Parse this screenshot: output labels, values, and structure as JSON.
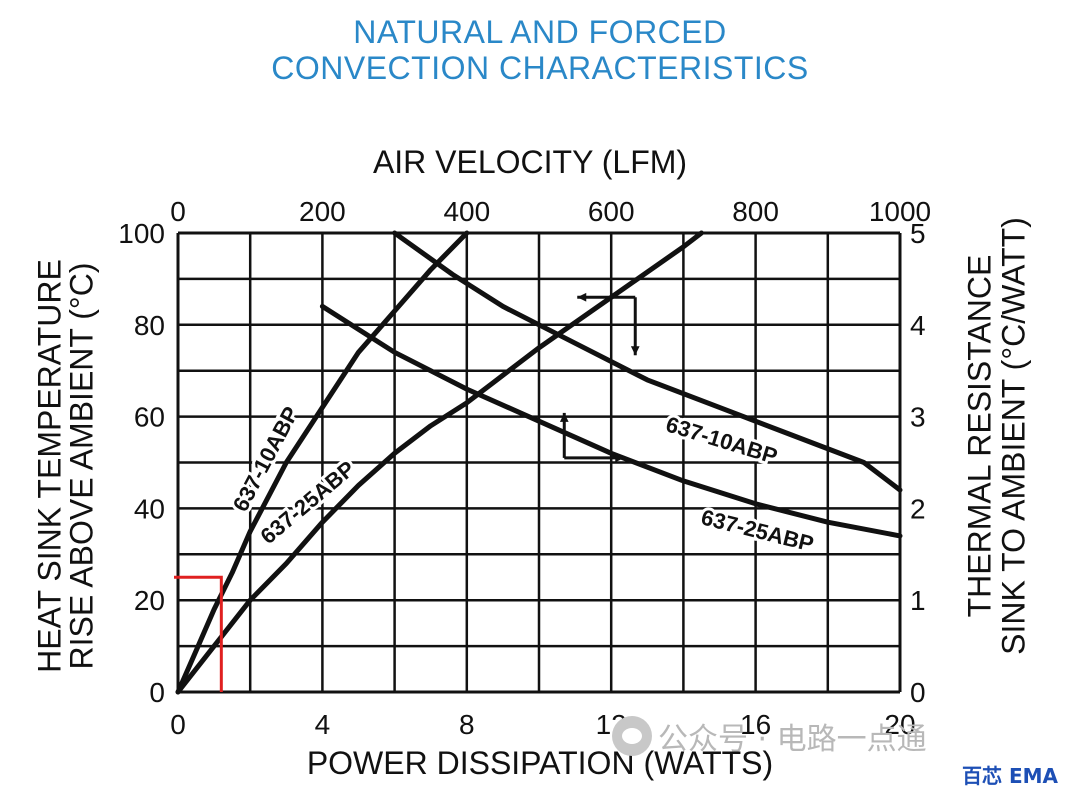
{
  "title_lines": [
    "NATURAL AND FORCED",
    "CONVECTION CHARACTERISTICS"
  ],
  "watermark_text": "公众号 · 电路一点通",
  "brand_text": "百芯 EMA",
  "chart_data": {
    "type": "line",
    "x_top": {
      "label": "AIR VELOCITY (LFM)",
      "range": [
        0,
        1000
      ],
      "ticks": [
        "0",
        "200",
        "400",
        "600",
        "800",
        "1000"
      ]
    },
    "x_bottom": {
      "label": "POWER DISSIPATION (WATTS)",
      "range": [
        0,
        20
      ],
      "ticks": [
        "0",
        "4",
        "8",
        "12",
        "16",
        "20"
      ]
    },
    "y_left": {
      "label_lines": [
        "HEAT SINK TEMPERATURE",
        "RISE ABOVE AMBIENT (°C)"
      ],
      "range": [
        0,
        100
      ],
      "ticks": [
        "0",
        "20",
        "40",
        "60",
        "80",
        "100"
      ]
    },
    "y_right": {
      "label_lines": [
        "THERMAL RESISTANCE",
        "SINK TO AMBIENT (°C/WATT)"
      ],
      "range": [
        0,
        5
      ],
      "ticks": [
        "0",
        "1",
        "2",
        "3",
        "4",
        "5"
      ]
    },
    "grid": true,
    "series": [
      {
        "name": "637-10ABP",
        "axes": "power-temperature",
        "points": [
          [
            0,
            0
          ],
          [
            0.5,
            9
          ],
          [
            1,
            18
          ],
          [
            1.5,
            26
          ],
          [
            2,
            35
          ],
          [
            3,
            50
          ],
          [
            4,
            62
          ],
          [
            5,
            74
          ],
          [
            6,
            83
          ],
          [
            7,
            92
          ],
          [
            8,
            100
          ]
        ]
      },
      {
        "name": "637-25ABP",
        "axes": "power-temperature",
        "points": [
          [
            0,
            0
          ],
          [
            1,
            10
          ],
          [
            2,
            20
          ],
          [
            3,
            28
          ],
          [
            4,
            37
          ],
          [
            5,
            45
          ],
          [
            6,
            52
          ],
          [
            7,
            58
          ],
          [
            8,
            63
          ],
          [
            9,
            69
          ],
          [
            10,
            75
          ],
          [
            12,
            86
          ],
          [
            14,
            97
          ],
          [
            14.5,
            100
          ]
        ]
      },
      {
        "name": "637-10ABP",
        "axes": "velocity-resistance",
        "points": [
          [
            300,
            5
          ],
          [
            380,
            4.55
          ],
          [
            450,
            4.2
          ],
          [
            550,
            3.8
          ],
          [
            650,
            3.4
          ],
          [
            750,
            3.1
          ],
          [
            850,
            2.8
          ],
          [
            950,
            2.5
          ],
          [
            1000,
            2.2
          ]
        ]
      },
      {
        "name": "637-25ABP",
        "axes": "velocity-resistance",
        "points": [
          [
            200,
            4.2
          ],
          [
            300,
            3.7
          ],
          [
            400,
            3.3
          ],
          [
            500,
            2.95
          ],
          [
            600,
            2.6
          ],
          [
            700,
            2.3
          ],
          [
            800,
            2.05
          ],
          [
            900,
            1.85
          ],
          [
            1000,
            1.7
          ]
        ]
      }
    ],
    "annotation": {
      "type": "marker",
      "x_power": 1.2,
      "y_temperature": 25
    }
  }
}
